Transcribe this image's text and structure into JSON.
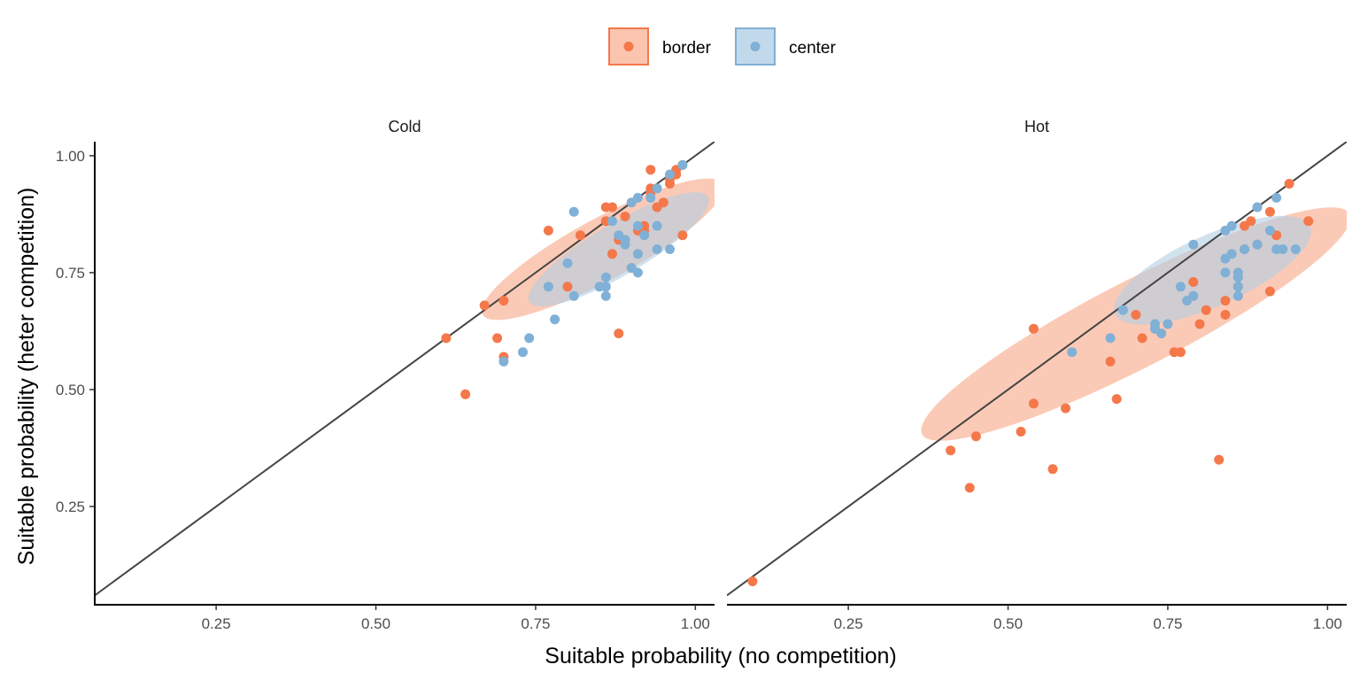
{
  "chart_data": {
    "type": "scatter",
    "xlabel": "Suitable probability (no competition)",
    "ylabel": "Suitable probability (heter competition)",
    "xlim": [
      0.06,
      1.03
    ],
    "ylim": [
      0.04,
      1.03
    ],
    "x_ticks": [
      0.25,
      0.5,
      0.75,
      1.0
    ],
    "x_tick_labels": [
      "0.25",
      "0.50",
      "0.75",
      "1.00"
    ],
    "y_ticks": [
      0.25,
      0.5,
      0.75,
      1.0
    ],
    "y_tick_labels": [
      "0.25",
      "0.50",
      "0.75",
      "1.00"
    ],
    "legend": {
      "placement": "top-center",
      "entries": [
        {
          "key": "border",
          "label": "border"
        },
        {
          "key": "center",
          "label": "center"
        }
      ]
    },
    "reference_line": {
      "type": "identity",
      "slope": 1,
      "intercept": 0
    },
    "colors": {
      "border": "#f4784a",
      "border_fill": "#f9b59a",
      "center": "#80b0d6",
      "center_fill": "#b2cfe5",
      "line": "#444444",
      "axis": "#000000"
    },
    "grid": false,
    "panels": [
      {
        "title": "Cold",
        "series": [
          {
            "name": "border",
            "points": [
              [
                0.61,
                0.61
              ],
              [
                0.64,
                0.49
              ],
              [
                0.67,
                0.68
              ],
              [
                0.69,
                0.61
              ],
              [
                0.7,
                0.57
              ],
              [
                0.7,
                0.69
              ],
              [
                0.77,
                0.84
              ],
              [
                0.8,
                0.72
              ],
              [
                0.82,
                0.83
              ],
              [
                0.86,
                0.89
              ],
              [
                0.86,
                0.86
              ],
              [
                0.87,
                0.79
              ],
              [
                0.87,
                0.89
              ],
              [
                0.88,
                0.62
              ],
              [
                0.88,
                0.82
              ],
              [
                0.89,
                0.87
              ],
              [
                0.9,
                0.76
              ],
              [
                0.91,
                0.84
              ],
              [
                0.92,
                0.85
              ],
              [
                0.92,
                0.84
              ],
              [
                0.93,
                0.92
              ],
              [
                0.93,
                0.93
              ],
              [
                0.93,
                0.97
              ],
              [
                0.94,
                0.89
              ],
              [
                0.95,
                0.9
              ],
              [
                0.96,
                0.94
              ],
              [
                0.96,
                0.95
              ],
              [
                0.97,
                0.96
              ],
              [
                0.97,
                0.97
              ],
              [
                0.98,
                0.83
              ],
              [
                0.98,
                0.98
              ]
            ],
            "ellipse": {
              "center": [
                0.855,
                0.8
              ],
              "semi_axes": [
                0.235,
                0.06
              ],
              "angle_deg": 37.7
            }
          },
          {
            "name": "center",
            "points": [
              [
                0.7,
                0.56
              ],
              [
                0.73,
                0.58
              ],
              [
                0.74,
                0.61
              ],
              [
                0.77,
                0.72
              ],
              [
                0.78,
                0.65
              ],
              [
                0.8,
                0.77
              ],
              [
                0.81,
                0.88
              ],
              [
                0.81,
                0.7
              ],
              [
                0.85,
                0.72
              ],
              [
                0.86,
                0.7
              ],
              [
                0.86,
                0.74
              ],
              [
                0.86,
                0.72
              ],
              [
                0.87,
                0.86
              ],
              [
                0.88,
                0.83
              ],
              [
                0.89,
                0.81
              ],
              [
                0.89,
                0.82
              ],
              [
                0.9,
                0.9
              ],
              [
                0.9,
                0.76
              ],
              [
                0.91,
                0.85
              ],
              [
                0.91,
                0.91
              ],
              [
                0.91,
                0.75
              ],
              [
                0.91,
                0.79
              ],
              [
                0.92,
                0.83
              ],
              [
                0.93,
                0.91
              ],
              [
                0.94,
                0.93
              ],
              [
                0.94,
                0.85
              ],
              [
                0.94,
                0.8
              ],
              [
                0.96,
                0.8
              ],
              [
                0.96,
                0.96
              ],
              [
                0.98,
                0.98
              ]
            ],
            "ellipse": {
              "center": [
                0.88,
                0.8
              ],
              "semi_axes": [
                0.18,
                0.05
              ],
              "angle_deg": 40.1
            }
          }
        ]
      },
      {
        "title": "Hot",
        "series": [
          {
            "name": "border",
            "points": [
              [
                0.1,
                0.09
              ],
              [
                0.41,
                0.37
              ],
              [
                0.44,
                0.29
              ],
              [
                0.45,
                0.4
              ],
              [
                0.52,
                0.41
              ],
              [
                0.54,
                0.47
              ],
              [
                0.54,
                0.63
              ],
              [
                0.57,
                0.33
              ],
              [
                0.59,
                0.46
              ],
              [
                0.66,
                0.56
              ],
              [
                0.67,
                0.48
              ],
              [
                0.7,
                0.66
              ],
              [
                0.71,
                0.61
              ],
              [
                0.73,
                0.63
              ],
              [
                0.76,
                0.58
              ],
              [
                0.77,
                0.58
              ],
              [
                0.79,
                0.73
              ],
              [
                0.8,
                0.64
              ],
              [
                0.81,
                0.67
              ],
              [
                0.83,
                0.35
              ],
              [
                0.84,
                0.66
              ],
              [
                0.84,
                0.69
              ],
              [
                0.86,
                0.72
              ],
              [
                0.87,
                0.85
              ],
              [
                0.87,
                0.8
              ],
              [
                0.88,
                0.86
              ],
              [
                0.89,
                0.81
              ],
              [
                0.91,
                0.88
              ],
              [
                0.91,
                0.71
              ],
              [
                0.92,
                0.83
              ],
              [
                0.94,
                0.94
              ],
              [
                0.97,
                0.86
              ]
            ],
            "ellipse": {
              "center": [
                0.7,
                0.64
              ],
              "semi_axes": [
                0.41,
                0.085
              ],
              "angle_deg": 35.8
            }
          },
          {
            "name": "center",
            "points": [
              [
                0.6,
                0.58
              ],
              [
                0.66,
                0.61
              ],
              [
                0.68,
                0.67
              ],
              [
                0.73,
                0.63
              ],
              [
                0.73,
                0.64
              ],
              [
                0.74,
                0.62
              ],
              [
                0.75,
                0.64
              ],
              [
                0.77,
                0.72
              ],
              [
                0.78,
                0.69
              ],
              [
                0.79,
                0.81
              ],
              [
                0.79,
                0.7
              ],
              [
                0.84,
                0.84
              ],
              [
                0.84,
                0.75
              ],
              [
                0.84,
                0.78
              ],
              [
                0.85,
                0.85
              ],
              [
                0.85,
                0.79
              ],
              [
                0.86,
                0.72
              ],
              [
                0.86,
                0.75
              ],
              [
                0.86,
                0.74
              ],
              [
                0.86,
                0.7
              ],
              [
                0.87,
                0.8
              ],
              [
                0.89,
                0.89
              ],
              [
                0.89,
                0.81
              ],
              [
                0.91,
                0.84
              ],
              [
                0.92,
                0.91
              ],
              [
                0.92,
                0.8
              ],
              [
                0.93,
                0.8
              ],
              [
                0.95,
                0.8
              ]
            ],
            "ellipse": {
              "center": [
                0.82,
                0.755
              ],
              "semi_axes": [
                0.18,
                0.07
              ],
              "angle_deg": 34.0
            }
          }
        ]
      }
    ]
  }
}
